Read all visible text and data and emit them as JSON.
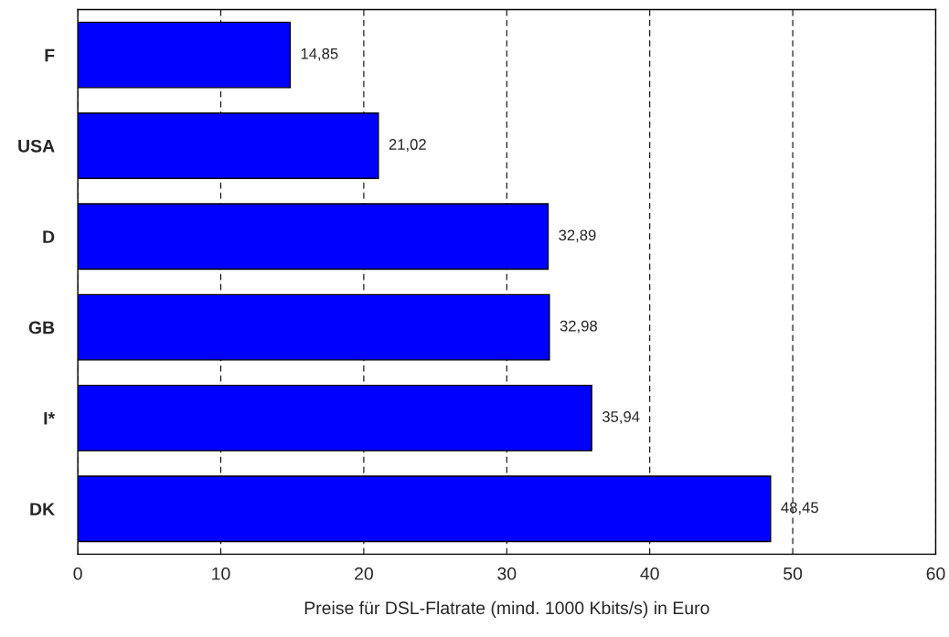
{
  "chart_data": {
    "type": "bar",
    "orientation": "horizontal",
    "xlabel": "Preise für DSL-Flatrate (mind. 1000 Kbits/s) in Euro",
    "categories": [
      "F",
      "USA",
      "D",
      "GB",
      "I*",
      "DK"
    ],
    "values": [
      14.85,
      21.02,
      32.89,
      32.98,
      35.94,
      48.45
    ],
    "value_labels": [
      "14,85",
      "21,02",
      "32,89",
      "32,98",
      "35,94",
      "48,45"
    ],
    "color": "#0000ff",
    "xlim": [
      0,
      60
    ],
    "xticks": [
      0,
      10,
      20,
      30,
      40,
      50,
      60
    ],
    "grid": "x",
    "legend": false
  }
}
